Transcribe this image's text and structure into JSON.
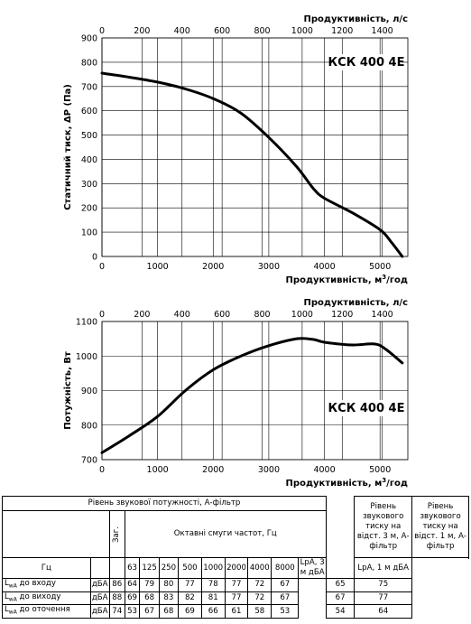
{
  "chart_data": [
    {
      "type": "line",
      "model": "КСК 400 4E",
      "ylabel": "Статичний тиск, ΔP (Па)",
      "xlabel_bottom_text": "Продуктивність, м",
      "xlabel_bottom_sup": "3",
      "xlabel_bottom_tail": "/год",
      "xlabel_top": "Продуктивність, л/с",
      "xlim": [
        0,
        5500
      ],
      "ylim": [
        0,
        900
      ],
      "xticks": [
        0,
        1000,
        2000,
        3000,
        4000,
        5000
      ],
      "xticks_top": [
        0,
        200,
        400,
        600,
        800,
        1000,
        1200,
        1400
      ],
      "yticks": [
        0,
        100,
        200,
        300,
        400,
        500,
        600,
        700,
        800,
        900
      ],
      "grid": true,
      "series": [
        {
          "x": [
            0,
            500,
            1000,
            1500,
            2000,
            2500,
            3000,
            3500,
            3800,
            4000,
            4500,
            5000,
            5200,
            5400
          ],
          "y": [
            755,
            738,
            718,
            690,
            650,
            590,
            490,
            370,
            280,
            240,
            180,
            110,
            60,
            0
          ]
        }
      ]
    },
    {
      "type": "line",
      "model": "КСК 400 4E",
      "ylabel": "Потужність, Вт",
      "xlabel_bottom_text": "Продуктивність, м",
      "xlabel_bottom_sup": "3",
      "xlabel_bottom_tail": "/год",
      "xlabel_top": "Продуктивність, л/с",
      "xlim": [
        0,
        5500
      ],
      "ylim": [
        700,
        1100
      ],
      "xticks": [
        0,
        1000,
        2000,
        3000,
        4000,
        5000
      ],
      "xticks_top": [
        0,
        200,
        400,
        600,
        800,
        1000,
        1200,
        1400
      ],
      "yticks": [
        700,
        800,
        900,
        1000,
        1100
      ],
      "grid": true,
      "series": [
        {
          "x": [
            0,
            500,
            1000,
            1500,
            2000,
            2500,
            3000,
            3500,
            3800,
            4000,
            4500,
            4900,
            5100,
            5400
          ],
          "y": [
            720,
            770,
            825,
            900,
            960,
            1000,
            1030,
            1050,
            1048,
            1040,
            1032,
            1035,
            1020,
            980
          ]
        }
      ]
    }
  ],
  "table": {
    "sound_power_header": "Рівень звукової потужності, А-фільтр",
    "total_header": "Заг.",
    "octave_header": "Октавні смуги частот, Гц",
    "hz_label": "Гц",
    "frequencies": [
      "63",
      "125",
      "250",
      "500",
      "1000",
      "2000",
      "4000",
      "8000"
    ],
    "pressure3_header": "Рівень звукового тиску на відст. 3 м, А-фільтр",
    "pressure1_header": "Рівень звукового тиску на відст. 1 м, А-фільтр",
    "pressure3_unit": "LpA, 3 м дБА",
    "pressure1_unit": "LpA, 1 м дБА",
    "rows": [
      {
        "label_main": "L",
        "label_sub": "wA",
        "label_tail": " до входу",
        "unit": "дБА",
        "total": "86",
        "values": [
          "64",
          "79",
          "80",
          "77",
          "78",
          "77",
          "72",
          "67"
        ],
        "p3": "65",
        "p1": "75"
      },
      {
        "label_main": "L",
        "label_sub": "wA",
        "label_tail": " до виходу",
        "unit": "дБА",
        "total": "88",
        "values": [
          "69",
          "68",
          "83",
          "82",
          "81",
          "77",
          "72",
          "67"
        ],
        "p3": "67",
        "p1": "77"
      },
      {
        "label_main": "L",
        "label_sub": "wA",
        "label_tail": " до оточення",
        "unit": "дБА",
        "total": "74",
        "values": [
          "53",
          "67",
          "68",
          "69",
          "66",
          "61",
          "58",
          "53"
        ],
        "p3": "54",
        "p1": "64"
      }
    ]
  }
}
